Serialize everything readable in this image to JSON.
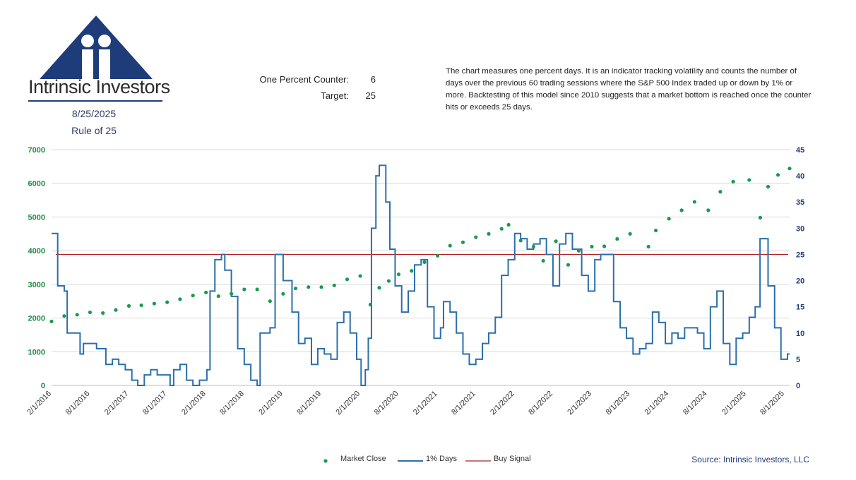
{
  "header": {
    "logo_name": "Intrinsic Investors",
    "date": "8/25/2025",
    "subtitle": "Rule of 25",
    "counter_label": "One Percent Counter:",
    "counter_value": "6",
    "target_label": "Target:",
    "target_value": "25",
    "description": "The chart measures one percent days.  It is an indicator tracking volatility and counts the number of days over the previous 60 trading sessions where the S&P 500 Index traded up or down by 1% or more. Backtesting of this model since 2010 suggests that a market bottom is reached once the counter hits or exceeds 25 days."
  },
  "colors": {
    "market": "#1a9a4e",
    "days": "#2a6fad",
    "signal": "#b22222",
    "left_axis": "#1a8a3e",
    "right_axis": "#1f3c7a",
    "logo_navy": "#1f3c7a"
  },
  "legend": {
    "market_label": "Market Close",
    "days_label": "1% Days",
    "signal_label": "Buy Signal"
  },
  "source": "Source: Intrinsic Investors, LLC",
  "chart_data": {
    "type": "line",
    "left_axis": {
      "min": 0,
      "max": 7000,
      "ticks": [
        "0",
        "1000",
        "2000",
        "3000",
        "4000",
        "5000",
        "6000",
        "7000"
      ]
    },
    "right_axis": {
      "min": 0,
      "max": 45,
      "ticks": [
        "0",
        "5",
        "10",
        "15",
        "20",
        "25",
        "30",
        "35",
        "40",
        "45"
      ]
    },
    "x_range": [
      "2016-02-01",
      "2025-08-25"
    ],
    "x_ticks": [
      "2/1/2016",
      "8/1/2016",
      "2/1/2017",
      "8/1/2017",
      "2/1/2018",
      "8/1/2018",
      "2/1/2019",
      "8/1/2019",
      "2/1/2020",
      "8/1/2020",
      "2/1/2021",
      "8/1/2021",
      "2/1/2022",
      "8/1/2022",
      "2/1/2023",
      "8/1/2023",
      "2/1/2024",
      "8/1/2024",
      "2/1/2025",
      "8/1/2025"
    ],
    "buy_signal": 25,
    "series": [
      {
        "name": "Market Close",
        "axis": "left",
        "points": [
          [
            "2016-02-01",
            1900
          ],
          [
            "2016-04-01",
            2060
          ],
          [
            "2016-06-01",
            2100
          ],
          [
            "2016-08-01",
            2170
          ],
          [
            "2016-10-01",
            2150
          ],
          [
            "2016-12-01",
            2240
          ],
          [
            "2017-02-01",
            2360
          ],
          [
            "2017-04-01",
            2380
          ],
          [
            "2017-06-01",
            2430
          ],
          [
            "2017-08-01",
            2470
          ],
          [
            "2017-10-01",
            2560
          ],
          [
            "2017-12-01",
            2670
          ],
          [
            "2018-02-01",
            2760
          ],
          [
            "2018-04-01",
            2650
          ],
          [
            "2018-06-01",
            2720
          ],
          [
            "2018-08-01",
            2850
          ],
          [
            "2018-10-01",
            2850
          ],
          [
            "2018-12-01",
            2500
          ],
          [
            "2019-02-01",
            2720
          ],
          [
            "2019-04-01",
            2880
          ],
          [
            "2019-06-01",
            2920
          ],
          [
            "2019-08-01",
            2920
          ],
          [
            "2019-10-01",
            2970
          ],
          [
            "2019-12-01",
            3150
          ],
          [
            "2020-02-01",
            3250
          ],
          [
            "2020-03-20",
            2400
          ],
          [
            "2020-05-01",
            2900
          ],
          [
            "2020-06-15",
            3100
          ],
          [
            "2020-08-01",
            3300
          ],
          [
            "2020-10-01",
            3400
          ],
          [
            "2020-12-01",
            3660
          ],
          [
            "2021-02-01",
            3850
          ],
          [
            "2021-04-01",
            4150
          ],
          [
            "2021-06-01",
            4250
          ],
          [
            "2021-08-01",
            4400
          ],
          [
            "2021-10-01",
            4500
          ],
          [
            "2021-12-01",
            4650
          ],
          [
            "2022-01-03",
            4770
          ],
          [
            "2022-03-01",
            4300
          ],
          [
            "2022-05-01",
            4120
          ],
          [
            "2022-06-16",
            3700
          ],
          [
            "2022-08-15",
            4280
          ],
          [
            "2022-10-12",
            3580
          ],
          [
            "2022-12-01",
            4000
          ],
          [
            "2023-02-01",
            4120
          ],
          [
            "2023-04-01",
            4130
          ],
          [
            "2023-06-01",
            4350
          ],
          [
            "2023-08-01",
            4500
          ],
          [
            "2023-10-27",
            4120
          ],
          [
            "2023-12-01",
            4600
          ],
          [
            "2024-02-01",
            4950
          ],
          [
            "2024-04-01",
            5200
          ],
          [
            "2024-06-01",
            5450
          ],
          [
            "2024-08-05",
            5200
          ],
          [
            "2024-10-01",
            5750
          ],
          [
            "2024-12-01",
            6050
          ],
          [
            "2025-02-15",
            6100
          ],
          [
            "2025-04-08",
            4980
          ],
          [
            "2025-05-15",
            5900
          ],
          [
            "2025-07-01",
            6250
          ],
          [
            "2025-08-25",
            6440
          ]
        ]
      },
      {
        "name": "1% Days",
        "axis": "right",
        "points": [
          [
            "2016-02-01",
            29
          ],
          [
            "2016-02-15",
            29
          ],
          [
            "2016-03-01",
            19
          ],
          [
            "2016-04-01",
            18
          ],
          [
            "2016-04-15",
            10
          ],
          [
            "2016-06-01",
            10
          ],
          [
            "2016-06-15",
            6
          ],
          [
            "2016-07-01",
            8
          ],
          [
            "2016-09-01",
            7
          ],
          [
            "2016-10-15",
            4
          ],
          [
            "2016-11-15",
            5
          ],
          [
            "2016-12-15",
            4
          ],
          [
            "2017-01-15",
            3
          ],
          [
            "2017-02-15",
            1
          ],
          [
            "2017-03-15",
            0
          ],
          [
            "2017-04-15",
            2
          ],
          [
            "2017-05-15",
            3
          ],
          [
            "2017-06-15",
            2
          ],
          [
            "2017-07-15",
            2
          ],
          [
            "2017-08-15",
            0
          ],
          [
            "2017-09-01",
            3
          ],
          [
            "2017-10-01",
            4
          ],
          [
            "2017-11-01",
            1
          ],
          [
            "2017-12-01",
            0
          ],
          [
            "2018-01-01",
            1
          ],
          [
            "2018-02-05",
            3
          ],
          [
            "2018-02-20",
            18
          ],
          [
            "2018-03-15",
            24
          ],
          [
            "2018-04-15",
            25
          ],
          [
            "2018-05-01",
            22
          ],
          [
            "2018-06-01",
            17
          ],
          [
            "2018-07-01",
            7
          ],
          [
            "2018-08-01",
            4
          ],
          [
            "2018-09-01",
            1
          ],
          [
            "2018-10-01",
            0
          ],
          [
            "2018-10-15",
            10
          ],
          [
            "2018-12-01",
            11
          ],
          [
            "2018-12-25",
            25
          ],
          [
            "2019-02-01",
            20
          ],
          [
            "2019-03-15",
            14
          ],
          [
            "2019-04-15",
            8
          ],
          [
            "2019-05-15",
            9
          ],
          [
            "2019-06-15",
            4
          ],
          [
            "2019-07-15",
            7
          ],
          [
            "2019-08-15",
            6
          ],
          [
            "2019-09-15",
            5
          ],
          [
            "2019-10-15",
            12
          ],
          [
            "2019-11-15",
            14
          ],
          [
            "2019-12-15",
            10
          ],
          [
            "2020-01-15",
            5
          ],
          [
            "2020-02-05",
            0
          ],
          [
            "2020-02-25",
            3
          ],
          [
            "2020-03-10",
            9
          ],
          [
            "2020-03-25",
            30
          ],
          [
            "2020-04-15",
            40
          ],
          [
            "2020-05-01",
            42
          ],
          [
            "2020-06-01",
            35
          ],
          [
            "2020-06-20",
            26
          ],
          [
            "2020-07-15",
            19
          ],
          [
            "2020-08-15",
            14
          ],
          [
            "2020-09-15",
            18
          ],
          [
            "2020-10-15",
            23
          ],
          [
            "2020-11-15",
            24
          ],
          [
            "2020-12-15",
            15
          ],
          [
            "2021-01-15",
            9
          ],
          [
            "2021-02-15",
            11
          ],
          [
            "2021-03-01",
            16
          ],
          [
            "2021-04-01",
            14
          ],
          [
            "2021-05-01",
            10
          ],
          [
            "2021-06-01",
            6
          ],
          [
            "2021-07-01",
            4
          ],
          [
            "2021-08-01",
            5
          ],
          [
            "2021-09-01",
            8
          ],
          [
            "2021-10-01",
            10
          ],
          [
            "2021-11-01",
            13
          ],
          [
            "2021-12-01",
            21
          ],
          [
            "2022-01-01",
            24
          ],
          [
            "2022-02-01",
            29
          ],
          [
            "2022-03-01",
            28
          ],
          [
            "2022-04-01",
            26
          ],
          [
            "2022-05-01",
            27
          ],
          [
            "2022-06-01",
            28
          ],
          [
            "2022-07-01",
            25
          ],
          [
            "2022-08-01",
            19
          ],
          [
            "2022-09-01",
            27
          ],
          [
            "2022-10-01",
            29
          ],
          [
            "2022-11-01",
            26
          ],
          [
            "2022-12-15",
            21
          ],
          [
            "2023-01-15",
            18
          ],
          [
            "2023-02-15",
            24
          ],
          [
            "2023-03-15",
            25
          ],
          [
            "2023-04-15",
            25
          ],
          [
            "2023-05-15",
            16
          ],
          [
            "2023-06-15",
            11
          ],
          [
            "2023-07-15",
            9
          ],
          [
            "2023-08-15",
            6
          ],
          [
            "2023-09-15",
            7
          ],
          [
            "2023-10-15",
            8
          ],
          [
            "2023-11-15",
            14
          ],
          [
            "2023-12-15",
            12
          ],
          [
            "2024-01-15",
            8
          ],
          [
            "2024-02-15",
            10
          ],
          [
            "2024-03-15",
            9
          ],
          [
            "2024-04-15",
            11
          ],
          [
            "2024-05-15",
            11
          ],
          [
            "2024-06-15",
            10
          ],
          [
            "2024-07-15",
            7
          ],
          [
            "2024-08-15",
            15
          ],
          [
            "2024-09-15",
            18
          ],
          [
            "2024-10-15",
            8
          ],
          [
            "2024-11-15",
            4
          ],
          [
            "2024-12-15",
            9
          ],
          [
            "2025-01-15",
            10
          ],
          [
            "2025-02-15",
            13
          ],
          [
            "2025-03-15",
            15
          ],
          [
            "2025-04-07",
            28
          ],
          [
            "2025-05-01",
            28
          ],
          [
            "2025-05-15",
            19
          ],
          [
            "2025-06-15",
            11
          ],
          [
            "2025-07-15",
            5
          ],
          [
            "2025-08-15",
            6
          ],
          [
            "2025-08-25",
            6
          ]
        ]
      }
    ]
  }
}
